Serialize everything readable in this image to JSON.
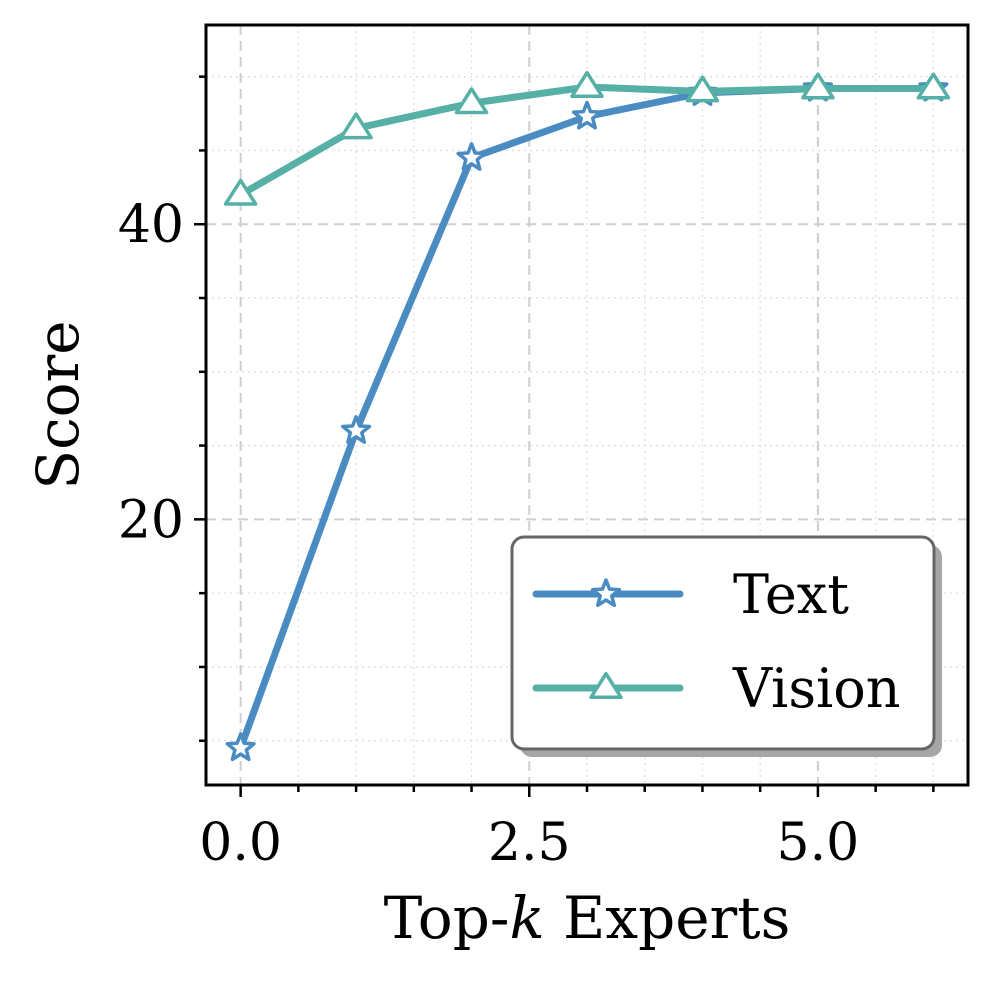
{
  "chart_data": {
    "type": "line",
    "title": "",
    "xlabel_prefix": "Top-",
    "xlabel_var": "k",
    "xlabel_suffix": " Experts",
    "ylabel": "Score",
    "xlim": [
      -0.3,
      6.3
    ],
    "ylim": [
      2,
      53.5
    ],
    "xticks": [
      0.0,
      2.5,
      5.0
    ],
    "xtick_labels": [
      "0.0",
      "2.5",
      "5.0"
    ],
    "yticks": [
      20,
      40
    ],
    "ytick_labels": [
      "20",
      "40"
    ],
    "grid": true,
    "legend_position": "lower-right",
    "series": [
      {
        "name": "Text",
        "marker": "star",
        "color": "#4A8CC2",
        "x": [
          0,
          1,
          2,
          3,
          4,
          5,
          6
        ],
        "y": [
          4.5,
          26.0,
          44.5,
          47.3,
          48.9,
          49.2,
          49.2
        ]
      },
      {
        "name": "Vision",
        "marker": "triangle",
        "color": "#56B0A6",
        "x": [
          0,
          1,
          2,
          3,
          4,
          5,
          6
        ],
        "y": [
          42.0,
          46.5,
          48.2,
          49.3,
          49.0,
          49.2,
          49.2
        ]
      }
    ]
  }
}
